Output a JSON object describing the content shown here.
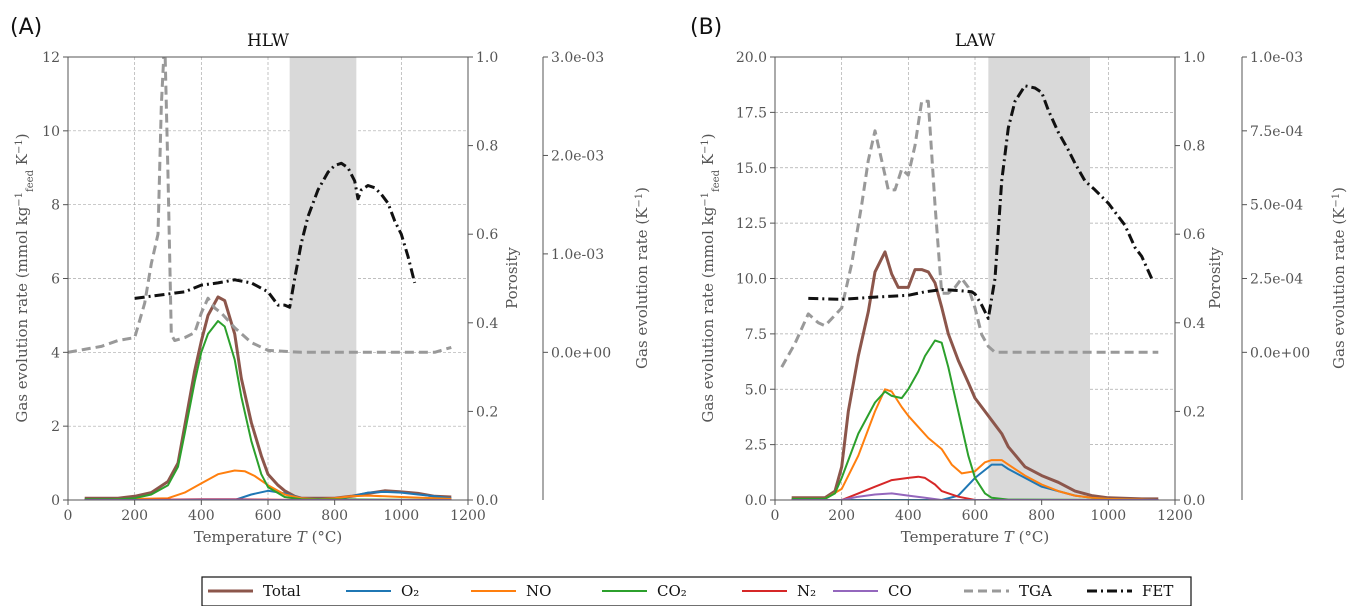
{
  "panels": [
    {
      "tag": "(A)",
      "title": "HLW"
    },
    {
      "tag": "(B)",
      "title": "LAW"
    }
  ],
  "axes": {
    "x_label": "Temperature T (°C)",
    "y_left_label": "Gas evolution rate (mmol kg⁻¹feed K⁻¹)",
    "y_right1_label": "Porosity",
    "y_right2_label": "Gas evolution rate (K⁻¹)"
  },
  "legend": [
    {
      "label": "Total",
      "color": "#8c564b",
      "dash": "solid",
      "width": 3
    },
    {
      "label": "O₂",
      "color": "#1f77b4",
      "dash": "solid",
      "width": 2
    },
    {
      "label": "NO",
      "color": "#ff7f0e",
      "dash": "solid",
      "width": 2
    },
    {
      "label": "CO₂",
      "color": "#2ca02c",
      "dash": "solid",
      "width": 2
    },
    {
      "label": "N₂",
      "color": "#d62728",
      "dash": "solid",
      "width": 2
    },
    {
      "label": "CO",
      "color": "#9467bd",
      "dash": "solid",
      "width": 2
    },
    {
      "label": "TGA",
      "color": "#999999",
      "dash": "dashed",
      "width": 3
    },
    {
      "label": "FET",
      "color": "#111111",
      "dash": "dashdot",
      "width": 3
    }
  ],
  "chart_data": [
    {
      "type": "line",
      "title": "HLW",
      "xlabel": "Temperature T (°C)",
      "ylabel": "Gas evolution rate (mmol kg⁻¹feed K⁻¹)",
      "xlim": [
        0,
        1200
      ],
      "ylim": [
        0,
        12
      ],
      "y2lim": [
        0,
        1.0
      ],
      "y3lim": [
        -0.0015,
        0.003
      ],
      "x_ticks": [
        "0",
        "200",
        "400",
        "600",
        "800",
        "1000",
        "1200"
      ],
      "y_ticks": [
        "0",
        "2",
        "4",
        "6",
        "8",
        "10",
        "12"
      ],
      "y2_ticks": [
        "0.0",
        "0.2",
        "0.4",
        "0.6",
        "0.8",
        "1.0"
      ],
      "y3_ticks": [
        "0.0e+00",
        "1.0e-03",
        "2.0e-03",
        "3.0e-03"
      ],
      "shaded_range": [
        665,
        865
      ],
      "series": [
        {
          "name": "Total",
          "axis": "left",
          "x": [
            50,
            150,
            200,
            250,
            300,
            330,
            350,
            380,
            400,
            420,
            450,
            470,
            500,
            520,
            550,
            580,
            600,
            630,
            650,
            680,
            700,
            750,
            800,
            850,
            900,
            950,
            1000,
            1050,
            1100,
            1150
          ],
          "y": [
            0.05,
            0.05,
            0.1,
            0.2,
            0.5,
            1.0,
            2.0,
            3.5,
            4.3,
            5.0,
            5.5,
            5.4,
            4.5,
            3.3,
            2.1,
            1.2,
            0.7,
            0.4,
            0.25,
            0.1,
            0.05,
            0.05,
            0.05,
            0.1,
            0.18,
            0.25,
            0.22,
            0.18,
            0.1,
            0.08
          ]
        },
        {
          "name": "O₂",
          "axis": "left",
          "x": [
            50,
            500,
            550,
            600,
            650,
            700,
            750,
            800,
            850,
            900,
            950,
            1000,
            1050,
            1100,
            1150
          ],
          "y": [
            0.0,
            0.0,
            0.15,
            0.25,
            0.18,
            0.05,
            0.02,
            0.02,
            0.1,
            0.2,
            0.22,
            0.2,
            0.15,
            0.1,
            0.05
          ]
        },
        {
          "name": "NO",
          "axis": "left",
          "x": [
            50,
            300,
            350,
            400,
            450,
            500,
            530,
            560,
            600,
            650,
            700,
            750,
            800,
            850,
            900,
            950,
            1000,
            1100,
            1150
          ],
          "y": [
            0.0,
            0.05,
            0.2,
            0.45,
            0.7,
            0.8,
            0.78,
            0.65,
            0.4,
            0.15,
            0.05,
            0.02,
            0.05,
            0.1,
            0.12,
            0.1,
            0.08,
            0.05,
            0.03
          ]
        },
        {
          "name": "CO₂",
          "axis": "left",
          "x": [
            50,
            150,
            200,
            250,
            300,
            330,
            350,
            380,
            400,
            420,
            450,
            470,
            500,
            520,
            550,
            580,
            600,
            650,
            700,
            1150
          ],
          "y": [
            0.02,
            0.02,
            0.05,
            0.15,
            0.4,
            0.9,
            1.8,
            3.2,
            4.0,
            4.5,
            4.85,
            4.7,
            3.8,
            2.8,
            1.6,
            0.7,
            0.35,
            0.08,
            0.02,
            0.0
          ]
        },
        {
          "name": "N₂",
          "axis": "left",
          "x": [
            50,
            200,
            300,
            400,
            500,
            600,
            700,
            1150
          ],
          "y": [
            0.0,
            0.0,
            0.01,
            0.02,
            0.02,
            0.01,
            0.0,
            0.0
          ]
        },
        {
          "name": "CO",
          "axis": "left",
          "x": [
            50,
            300,
            400,
            500,
            600,
            700,
            1150
          ],
          "y": [
            0.0,
            0.0,
            0.01,
            0.01,
            0.0,
            0.0,
            0.0
          ]
        },
        {
          "name": "TGA",
          "axis": "right3",
          "x": [
            0,
            100,
            150,
            200,
            230,
            250,
            270,
            280,
            290,
            300,
            310,
            320,
            350,
            380,
            400,
            420,
            440,
            460,
            500,
            550,
            600,
            700,
            800,
            900,
            1000,
            1100,
            1150
          ],
          "y": [
            0.0,
            6e-05,
            0.00012,
            0.00015,
            0.0005,
            0.0009,
            0.0012,
            0.0025,
            0.0032,
            0.0018,
            0.00018,
            0.00012,
            0.00015,
            0.0002,
            0.0004,
            0.00055,
            0.00045,
            0.0004,
            0.00025,
            0.0001,
            2e-05,
            0.0,
            0.0,
            0.0,
            0.0,
            0.0,
            5e-05
          ]
        },
        {
          "name": "FET",
          "axis": "right1",
          "x": [
            200,
            250,
            300,
            350,
            400,
            450,
            500,
            550,
            600,
            630,
            650,
            665,
            680,
            700,
            720,
            750,
            780,
            800,
            820,
            840,
            860,
            870,
            880,
            900,
            920,
            940,
            960,
            980,
            1000,
            1020,
            1040
          ],
          "y": [
            0.455,
            0.46,
            0.465,
            0.47,
            0.485,
            0.49,
            0.497,
            0.49,
            0.47,
            0.44,
            0.44,
            0.435,
            0.5,
            0.58,
            0.64,
            0.7,
            0.74,
            0.755,
            0.76,
            0.75,
            0.72,
            0.68,
            0.7,
            0.71,
            0.705,
            0.69,
            0.67,
            0.63,
            0.6,
            0.55,
            0.49
          ]
        }
      ]
    },
    {
      "type": "line",
      "title": "LAW",
      "xlabel": "Temperature T (°C)",
      "ylabel": "Gas evolution rate (mmol kg⁻¹feed K⁻¹)",
      "xlim": [
        0,
        1200
      ],
      "ylim": [
        0,
        20
      ],
      "y2lim": [
        0,
        1.0
      ],
      "y3lim": [
        -0.0005,
        0.001
      ],
      "x_ticks": [
        "0",
        "200",
        "400",
        "600",
        "800",
        "1000",
        "1200"
      ],
      "y_ticks": [
        "0.0",
        "2.5",
        "5.0",
        "7.5",
        "10.0",
        "12.5",
        "15.0",
        "17.5",
        "20.0"
      ],
      "y2_ticks": [
        "0.0",
        "0.2",
        "0.4",
        "0.6",
        "0.8",
        "1.0"
      ],
      "y3_ticks": [
        "0.0e+00",
        "2.5e-04",
        "5.0e-04",
        "7.5e-04",
        "1.0e-03"
      ],
      "shaded_range": [
        640,
        945
      ],
      "series": [
        {
          "name": "Total",
          "axis": "left",
          "x": [
            50,
            150,
            180,
            200,
            220,
            250,
            280,
            300,
            330,
            350,
            370,
            400,
            420,
            440,
            460,
            480,
            500,
            520,
            550,
            580,
            600,
            630,
            650,
            680,
            700,
            750,
            800,
            850,
            900,
            950,
            1000,
            1100,
            1150
          ],
          "y": [
            0.1,
            0.1,
            0.4,
            1.5,
            4.0,
            6.5,
            8.5,
            10.3,
            11.2,
            10.2,
            9.6,
            9.6,
            10.4,
            10.4,
            10.3,
            9.8,
            8.7,
            7.5,
            6.3,
            5.3,
            4.6,
            4.0,
            3.6,
            3.0,
            2.4,
            1.5,
            1.1,
            0.8,
            0.4,
            0.2,
            0.1,
            0.05,
            0.05
          ]
        },
        {
          "name": "O₂",
          "axis": "left",
          "x": [
            50,
            500,
            550,
            600,
            650,
            680,
            700,
            750,
            800,
            850,
            900,
            950,
            1000,
            1150
          ],
          "y": [
            0.0,
            0.0,
            0.2,
            1.0,
            1.6,
            1.6,
            1.4,
            1.0,
            0.6,
            0.4,
            0.2,
            0.1,
            0.05,
            0.0
          ]
        },
        {
          "name": "NO",
          "axis": "left",
          "x": [
            50,
            150,
            200,
            250,
            300,
            330,
            350,
            380,
            400,
            430,
            460,
            500,
            530,
            560,
            600,
            630,
            650,
            680,
            700,
            750,
            800,
            850,
            900,
            950,
            1000,
            1150
          ],
          "y": [
            0.05,
            0.05,
            0.5,
            2.0,
            4.0,
            5.0,
            4.9,
            4.2,
            3.8,
            3.3,
            2.8,
            2.3,
            1.6,
            1.2,
            1.3,
            1.7,
            1.8,
            1.8,
            1.6,
            1.1,
            0.7,
            0.4,
            0.2,
            0.1,
            0.05,
            0.0
          ]
        },
        {
          "name": "CO₂",
          "axis": "left",
          "x": [
            50,
            150,
            180,
            200,
            250,
            300,
            330,
            350,
            380,
            400,
            430,
            450,
            480,
            500,
            520,
            550,
            580,
            600,
            630,
            650,
            700,
            1150
          ],
          "y": [
            0.05,
            0.05,
            0.3,
            1.0,
            3.0,
            4.4,
            4.9,
            4.7,
            4.6,
            5.0,
            5.8,
            6.5,
            7.2,
            7.1,
            6.0,
            4.0,
            2.0,
            1.0,
            0.3,
            0.1,
            0.02,
            0.0
          ]
        },
        {
          "name": "N₂",
          "axis": "left",
          "x": [
            50,
            200,
            250,
            300,
            350,
            400,
            430,
            450,
            480,
            500,
            550,
            600,
            1150
          ],
          "y": [
            0.0,
            0.0,
            0.3,
            0.6,
            0.9,
            1.0,
            1.05,
            1.0,
            0.7,
            0.4,
            0.15,
            0.0,
            0.0
          ]
        },
        {
          "name": "CO",
          "axis": "left",
          "x": [
            50,
            200,
            250,
            300,
            350,
            400,
            450,
            500,
            1150
          ],
          "y": [
            0.0,
            0.0,
            0.15,
            0.25,
            0.3,
            0.2,
            0.1,
            0.0,
            0.0
          ]
        },
        {
          "name": "TGA",
          "axis": "right3",
          "x": [
            20,
            60,
            100,
            130,
            150,
            200,
            230,
            260,
            280,
            300,
            320,
            340,
            360,
            380,
            400,
            420,
            440,
            460,
            480,
            500,
            520,
            540,
            560,
            580,
            600,
            620,
            640,
            660,
            700,
            800,
            900,
            1000,
            1100,
            1150
          ],
          "y": [
            -5e-05,
            3e-05,
            0.00013,
            0.0001,
            9e-05,
            0.00015,
            0.0003,
            0.0005,
            0.00065,
            0.00075,
            0.00065,
            0.00055,
            0.00055,
            0.00062,
            0.0006,
            0.0007,
            0.00085,
            0.00085,
            0.0005,
            0.0002,
            0.0002,
            0.00022,
            0.00025,
            0.00022,
            0.00015,
            6e-05,
            2e-05,
            0.0,
            0.0,
            0.0,
            0.0,
            0.0,
            0.0,
            0.0
          ]
        },
        {
          "name": "FET",
          "axis": "right1",
          "x": [
            100,
            200,
            300,
            400,
            450,
            500,
            550,
            590,
            600,
            620,
            640,
            660,
            680,
            700,
            720,
            750,
            780,
            800,
            820,
            850,
            880,
            900,
            930,
            960,
            1000,
            1050,
            1080,
            1100,
            1130
          ],
          "y": [
            0.455,
            0.453,
            0.458,
            0.462,
            0.47,
            0.475,
            0.473,
            0.47,
            0.465,
            0.44,
            0.41,
            0.5,
            0.72,
            0.84,
            0.9,
            0.935,
            0.93,
            0.92,
            0.88,
            0.83,
            0.79,
            0.76,
            0.72,
            0.7,
            0.67,
            0.62,
            0.57,
            0.55,
            0.5
          ]
        }
      ]
    }
  ]
}
